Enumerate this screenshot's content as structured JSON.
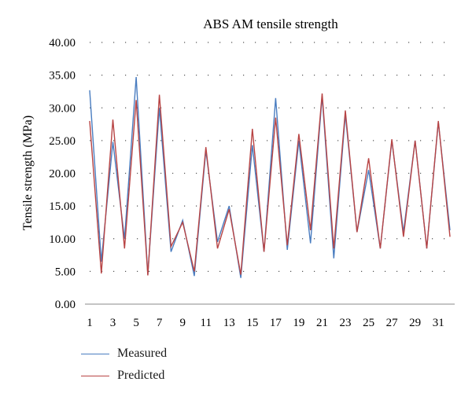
{
  "chart_data": {
    "type": "line",
    "title": "ABS AM tensile strength",
    "xlabel": "",
    "ylabel": "Tensile strength (MPa)",
    "x": [
      1,
      2,
      3,
      4,
      5,
      6,
      7,
      8,
      9,
      10,
      11,
      12,
      13,
      14,
      15,
      16,
      17,
      18,
      19,
      20,
      21,
      22,
      23,
      24,
      25,
      26,
      27,
      28,
      29,
      30,
      31,
      32
    ],
    "xtick_labels": [
      "1",
      "3",
      "5",
      "7",
      "9",
      "11",
      "13",
      "15",
      "17",
      "19",
      "21",
      "23",
      "25",
      "27",
      "29",
      "31"
    ],
    "ylim": [
      0,
      40
    ],
    "yticks": [
      "0.00",
      "5.00",
      "10.00",
      "15.00",
      "20.00",
      "25.00",
      "30.00",
      "35.00",
      "40.00"
    ],
    "grid": "horizontal dotted",
    "legend_position": "bottom-left",
    "series": [
      {
        "name": "Measured",
        "color": "#4a7dc0",
        "values": [
          32.7,
          6.5,
          24.8,
          10.0,
          34.7,
          4.5,
          30.0,
          8.0,
          12.8,
          4.3,
          23.5,
          9.5,
          15.0,
          4.0,
          24.3,
          8.0,
          31.5,
          8.3,
          25.0,
          9.3,
          31.8,
          7.0,
          29.0,
          11.0,
          20.5,
          8.5,
          25.0,
          11.0,
          25.0,
          8.5,
          27.8,
          11.3
        ]
      },
      {
        "name": "Predicted",
        "color": "#b84444",
        "values": [
          28.0,
          4.7,
          28.2,
          8.5,
          31.2,
          4.4,
          32.0,
          8.8,
          12.5,
          5.0,
          24.0,
          8.5,
          14.5,
          4.5,
          26.8,
          8.0,
          28.5,
          9.0,
          26.0,
          11.3,
          32.2,
          8.5,
          29.6,
          11.0,
          22.3,
          8.5,
          25.2,
          10.3,
          25.0,
          8.5,
          28.0,
          10.3
        ]
      }
    ]
  }
}
